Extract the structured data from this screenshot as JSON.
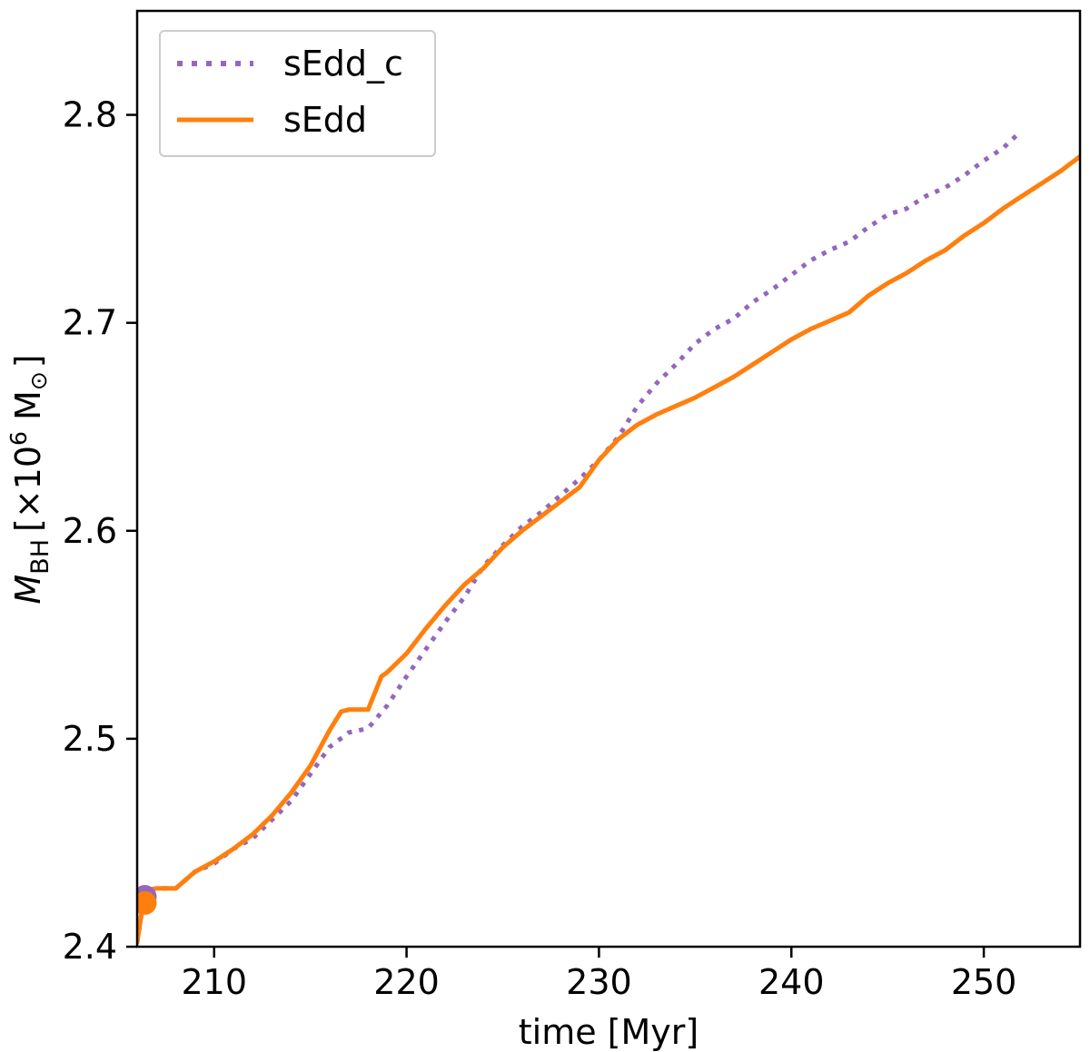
{
  "chart_data": {
    "type": "line",
    "title": "",
    "xlabel": "time [Myr]",
    "ylabel": {
      "symbol": "M",
      "subscript": "BH",
      "unit_prefix": "[×10",
      "unit_exponent": "6",
      "unit_suffix": " M",
      "unit_sun_subscript": "⊙",
      "unit_close": "]"
    },
    "xlim": [
      206,
      255
    ],
    "ylim": [
      2.4,
      2.85
    ],
    "xticks": [
      210,
      220,
      230,
      240,
      250
    ],
    "yticks": [
      2.4,
      2.5,
      2.6,
      2.7,
      2.8
    ],
    "xtick_labels": [
      "210",
      "220",
      "230",
      "240",
      "250"
    ],
    "ytick_labels": [
      "2.4",
      "2.5",
      "2.6",
      "2.7",
      "2.8"
    ],
    "grid": false,
    "legend_position": "top-left",
    "series": [
      {
        "name": "sEdd_c",
        "color": "#9467bd",
        "style": "dotted",
        "x": [
          206.0,
          206.4,
          207.0,
          208.0,
          209.0,
          210.0,
          211.0,
          212.0,
          213.0,
          214.0,
          215.0,
          216.0,
          217.0,
          218.0,
          219.0,
          220.0,
          221.0,
          222.0,
          223.0,
          224.0,
          225.0,
          226.0,
          227.0,
          228.0,
          229.0,
          230.0,
          231.0,
          232.0,
          233.0,
          234.0,
          235.0,
          236.0,
          237.0,
          238.0,
          239.0,
          240.0,
          241.0,
          242.0,
          243.0,
          244.0,
          245.0,
          246.0,
          247.0,
          248.0,
          249.0,
          250.0,
          251.0,
          251.8
        ],
        "values": [
          2.402,
          2.427,
          2.428,
          2.428,
          2.436,
          2.44,
          2.447,
          2.452,
          2.461,
          2.47,
          2.483,
          2.496,
          2.503,
          2.505,
          2.516,
          2.53,
          2.543,
          2.556,
          2.568,
          2.583,
          2.593,
          2.602,
          2.609,
          2.617,
          2.625,
          2.634,
          2.645,
          2.66,
          2.671,
          2.68,
          2.69,
          2.697,
          2.702,
          2.71,
          2.716,
          2.723,
          2.73,
          2.735,
          2.739,
          2.746,
          2.752,
          2.755,
          2.761,
          2.765,
          2.771,
          2.778,
          2.784,
          2.791
        ]
      },
      {
        "name": "sEdd",
        "color": "#ff7f0e",
        "style": "solid",
        "x": [
          206.0,
          206.4,
          207.0,
          208.0,
          209.0,
          210.0,
          211.0,
          212.0,
          213.0,
          214.0,
          215.0,
          216.0,
          216.6,
          217.0,
          218.0,
          218.7,
          219.0,
          220.0,
          221.0,
          222.0,
          223.0,
          224.0,
          225.0,
          226.0,
          227.0,
          228.0,
          229.0,
          230.0,
          231.0,
          232.0,
          233.0,
          234.0,
          235.0,
          236.0,
          237.0,
          238.0,
          239.0,
          240.0,
          241.0,
          242.0,
          243.0,
          244.0,
          245.0,
          246.0,
          247.0,
          248.0,
          249.0,
          250.0,
          251.0,
          252.0,
          253.0,
          254.0,
          255.0
        ],
        "values": [
          2.402,
          2.427,
          2.428,
          2.428,
          2.436,
          2.441,
          2.447,
          2.454,
          2.463,
          2.474,
          2.487,
          2.504,
          2.513,
          2.514,
          2.514,
          2.53,
          2.532,
          2.541,
          2.553,
          2.564,
          2.574,
          2.582,
          2.592,
          2.6,
          2.607,
          2.614,
          2.621,
          2.634,
          2.644,
          2.651,
          2.656,
          2.66,
          2.664,
          2.669,
          2.674,
          2.68,
          2.686,
          2.692,
          2.697,
          2.701,
          2.705,
          2.713,
          2.719,
          2.724,
          2.73,
          2.735,
          2.742,
          2.748,
          2.755,
          2.761,
          2.767,
          2.773,
          2.78
        ]
      }
    ],
    "markers": [
      {
        "name": "sEdd_c-start",
        "series": "sEdd_c",
        "x": 206.4,
        "y": 2.424,
        "color": "#9467bd"
      },
      {
        "name": "sEdd-start",
        "series": "sEdd",
        "x": 206.4,
        "y": 2.421,
        "color": "#ff7f0e"
      }
    ]
  }
}
